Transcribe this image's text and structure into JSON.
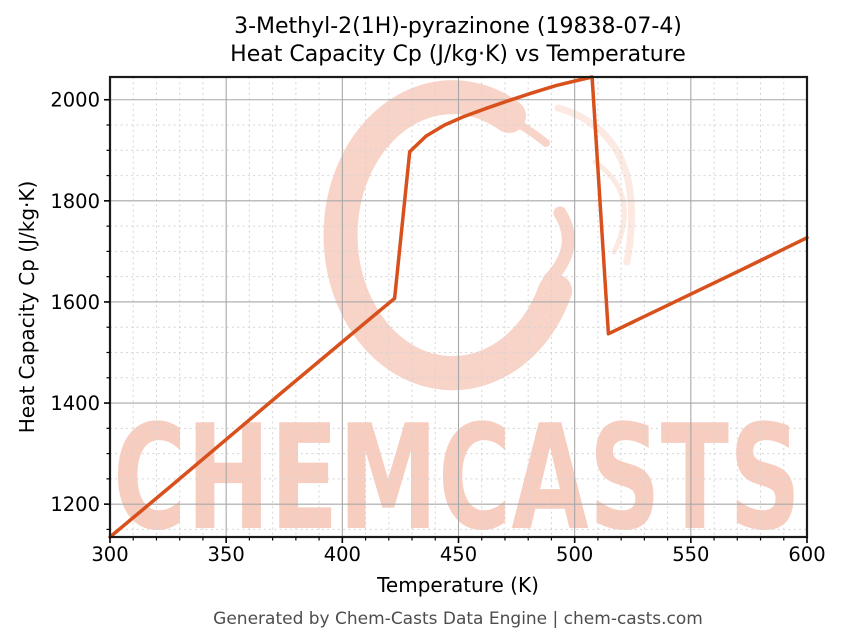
{
  "title": {
    "line1": "3-Methyl-2(1H)-pyrazinone (19838-07-4)",
    "line2": "Heat Capacity Cp (J/kg·K) vs Temperature"
  },
  "footer": {
    "text": "Generated by Chem-Casts Data Engine | chem-casts.com"
  },
  "watermark": {
    "text": "CHEMCASTS",
    "letters_color": "#f7cdc0",
    "swirl_color": "#f8d3c7",
    "swirl_faint_color": "#fceae2"
  },
  "colors": {
    "line": "#d8511d",
    "grid_major": "#a8a8a8",
    "grid_minor": "#d4d4d4",
    "spine": "#1a1a1a",
    "tick": "#000000",
    "text": "#000000",
    "footer_text": "#4d4d4d"
  },
  "chart_data": {
    "type": "line",
    "title": "3-Methyl-2(1H)-pyrazinone (19838-07-4) Heat Capacity Cp (J/kg·K) vs Temperature",
    "xlabel": "Temperature (K)",
    "ylabel": "Heat Capacity Cp (J/kg·K)",
    "xlim": [
      300,
      600
    ],
    "ylim": [
      1135,
      2045
    ],
    "x_major_ticks": [
      300,
      350,
      400,
      450,
      500,
      550,
      600
    ],
    "y_major_ticks": [
      1200,
      1400,
      1600,
      1800,
      2000
    ],
    "x_minor_step": 10,
    "y_minor_step": 50,
    "grid": true,
    "legend": false,
    "line_width": 3.5,
    "series": [
      {
        "name": "Heat Capacity Cp (J/kg·K)",
        "x": [
          300,
          325,
          350,
          375,
          400,
          412,
          422.5,
          429,
          436,
          444,
          452,
          462,
          472,
          482,
          492,
          501,
          507.5,
          514.5,
          543,
          572,
          600
        ],
        "y": [
          1135,
          1231,
          1328,
          1425,
          1521,
          1567,
          1607,
          1897,
          1928,
          1950,
          1966,
          1983,
          1999,
          2014,
          2028,
          2038,
          2045,
          1537,
          1600,
          1664,
          1727
        ]
      }
    ]
  }
}
